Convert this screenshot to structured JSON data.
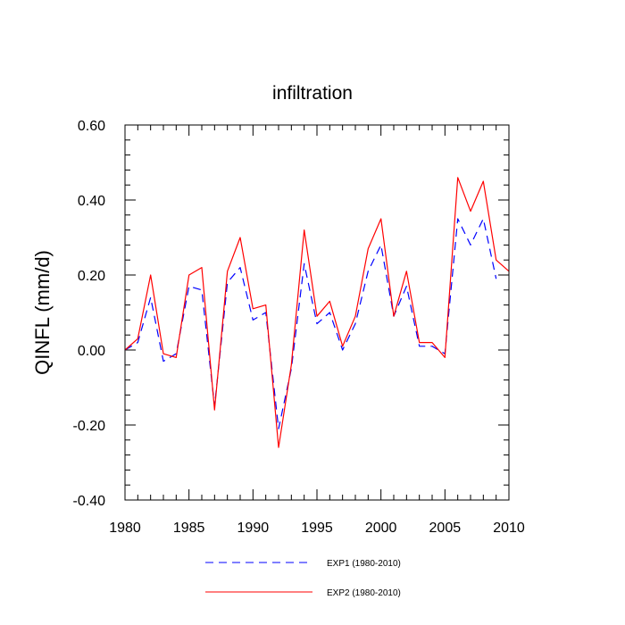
{
  "chart_data": {
    "type": "line",
    "title": "infiltration",
    "xlabel": "",
    "ylabel": "QINFL  (mm/d)",
    "xlim": [
      1980,
      2010
    ],
    "ylim": [
      -0.4,
      0.6
    ],
    "xticks": [
      1980,
      1985,
      1990,
      1995,
      2000,
      2005,
      2010
    ],
    "xtick_labels": [
      "1980",
      "1985",
      "1990",
      "1995",
      "2000",
      "2005",
      "2010"
    ],
    "yticks": [
      -0.4,
      -0.2,
      0.0,
      0.2,
      0.4,
      0.6
    ],
    "ytick_labels": [
      "-0.40",
      "-0.20",
      "0.00",
      "0.20",
      "0.40",
      "0.60"
    ],
    "grid": false,
    "legend_position": "bottom",
    "x": [
      1980,
      1981,
      1982,
      1983,
      1984,
      1985,
      1986,
      1987,
      1988,
      1989,
      1990,
      1991,
      1992,
      1993,
      1994,
      1995,
      1996,
      1997,
      1998,
      1999,
      2000,
      2001,
      2002,
      2003,
      2004,
      2005,
      2006,
      2007,
      2008,
      2009,
      2010
    ],
    "series": [
      {
        "name": "EXP1 (1980-2010)",
        "color": "#0000ff",
        "style": "dashed",
        "values": [
          0.0,
          0.02,
          0.14,
          -0.03,
          -0.01,
          0.17,
          0.16,
          -0.15,
          0.18,
          0.22,
          0.08,
          0.1,
          -0.21,
          -0.05,
          0.23,
          0.07,
          0.1,
          0.0,
          0.07,
          0.21,
          0.28,
          0.09,
          0.17,
          0.01,
          0.01,
          -0.01,
          0.35,
          0.28,
          0.35,
          0.19,
          null
        ]
      },
      {
        "name": "EXP2 (1980-2010)",
        "color": "#ff0000",
        "style": "solid",
        "values": [
          0.0,
          0.03,
          0.2,
          -0.01,
          -0.02,
          0.2,
          0.22,
          -0.16,
          0.21,
          0.3,
          0.11,
          0.12,
          -0.26,
          -0.04,
          0.32,
          0.09,
          0.13,
          0.01,
          0.09,
          0.27,
          0.35,
          0.09,
          0.21,
          0.02,
          0.02,
          -0.02,
          0.46,
          0.37,
          0.45,
          0.24,
          0.21
        ]
      }
    ]
  }
}
